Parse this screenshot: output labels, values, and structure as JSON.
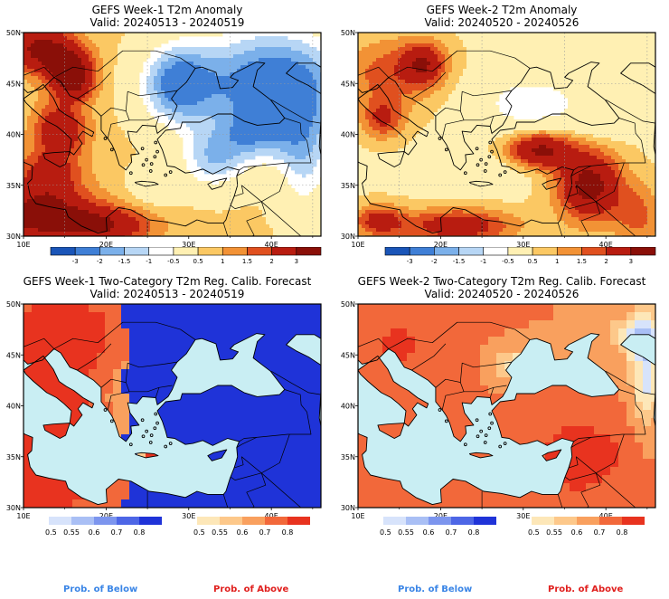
{
  "panels": [
    {
      "id": "p1",
      "title": "GEFS Week-1 T2m Anomaly",
      "valid": "Valid: 20240513 - 20240519",
      "kind": "anomaly",
      "lat_labels": [
        "50N",
        "45N",
        "40N",
        "35N",
        "30N"
      ],
      "lon_labels": [
        "10E",
        "20E",
        "30E",
        "40E"
      ]
    },
    {
      "id": "p2",
      "title": "GEFS Week-2 T2m Anomaly",
      "valid": "Valid: 20240520 - 20240526",
      "kind": "anomaly",
      "lat_labels": [
        "50N",
        "45N",
        "40N",
        "35N",
        "30N"
      ],
      "lon_labels": [
        "10E",
        "20E",
        "30E",
        "40E"
      ]
    },
    {
      "id": "p3",
      "title": "GEFS Week-1 Two-Category T2m Reg. Calib. Forecast",
      "valid": "Valid: 20240513 - 20240519",
      "kind": "prob",
      "lat_labels": [
        "50N",
        "45N",
        "40N",
        "35N",
        "30N"
      ],
      "lon_labels": [
        "10E",
        "20E",
        "30E",
        "40E"
      ]
    },
    {
      "id": "p4",
      "title": "GEFS Week-2 Two-Category T2m Reg. Calib. Forecast",
      "valid": "Valid: 20240520 - 20240526",
      "kind": "prob",
      "lat_labels": [
        "50N",
        "45N",
        "40N",
        "35N",
        "30N"
      ],
      "lon_labels": [
        "10E",
        "20E",
        "30E",
        "40E"
      ]
    }
  ],
  "anomaly_colorbar": {
    "labels": [
      "-3",
      "-2",
      "-1.5",
      "-1",
      "-0.5",
      "0.5",
      "1",
      "1.5",
      "2",
      "3"
    ],
    "colors": [
      "#1a55b8",
      "#3f7fd6",
      "#7bb0ea",
      "#b7d6f5",
      "#ffffff",
      "#fff0b3",
      "#fbc863",
      "#f29235",
      "#e0501f",
      "#b81c10",
      "#8a0f08"
    ]
  },
  "prob_colorbars": {
    "below_labels": [
      "0.5",
      "0.55",
      "0.6",
      "0.7",
      "0.8"
    ],
    "above_labels": [
      "0.5",
      "0.55",
      "0.6",
      "0.7",
      "0.8"
    ],
    "below_colors": [
      "#d7e3fb",
      "#a9bff5",
      "#7c95ee",
      "#4d66e6",
      "#1f33d8"
    ],
    "above_colors": [
      "#fde7b8",
      "#fdc88a",
      "#f9a05e",
      "#f2683a",
      "#e8331f"
    ]
  },
  "legend": {
    "below": "Prob. of Below",
    "above": "Prob. of Above",
    "below_color": "#3a85e6",
    "above_color": "#e0201e"
  },
  "colors": {
    "sea_prob": "#c9eef3",
    "anom_white": "#ffffff"
  }
}
